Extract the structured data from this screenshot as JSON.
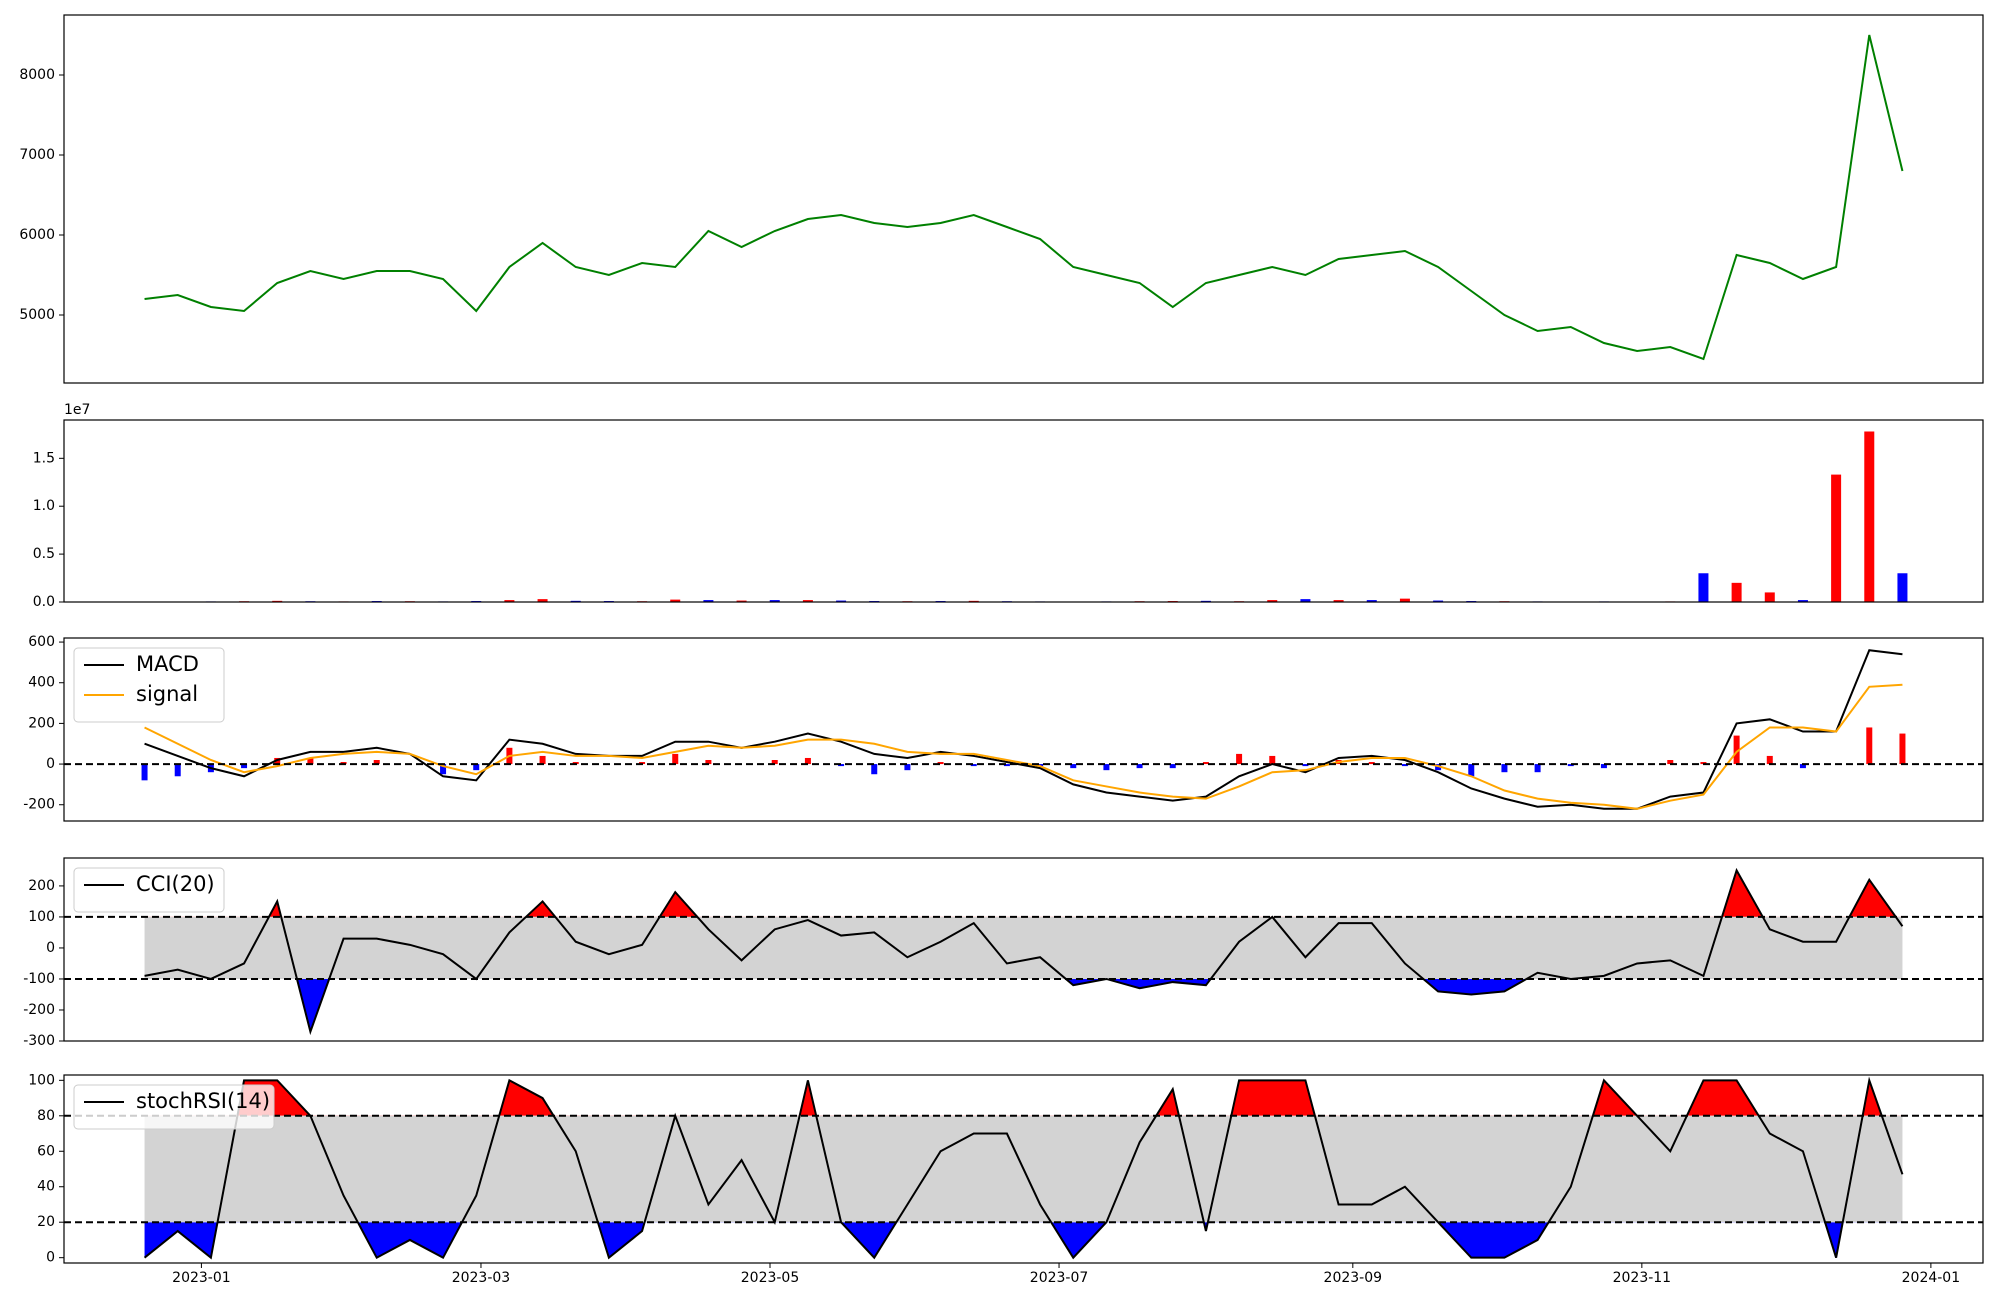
{
  "chart_data": [
    {
      "type": "line",
      "xlim": [
        "2022-12-03",
        "2024-01-12"
      ],
      "ylim": [
        4150,
        8750
      ],
      "yticks": [
        5000,
        6000,
        7000,
        8000
      ],
      "x": [
        "2022-12-20",
        "2022-12-27",
        "2023-01-03",
        "2023-01-10",
        "2023-01-17",
        "2023-01-24",
        "2023-01-31",
        "2023-02-07",
        "2023-02-14",
        "2023-02-21",
        "2023-02-28",
        "2023-03-07",
        "2023-03-14",
        "2023-03-21",
        "2023-03-28",
        "2023-04-04",
        "2023-04-11",
        "2023-04-18",
        "2023-04-25",
        "2023-05-02",
        "2023-05-09",
        "2023-05-16",
        "2023-05-23",
        "2023-05-30",
        "2023-06-06",
        "2023-06-13",
        "2023-06-20",
        "2023-06-27",
        "2023-07-04",
        "2023-07-11",
        "2023-07-18",
        "2023-07-25",
        "2023-08-01",
        "2023-08-08",
        "2023-08-15",
        "2023-08-22",
        "2023-08-29",
        "2023-09-05",
        "2023-09-12",
        "2023-09-19",
        "2023-09-26",
        "2023-10-03",
        "2023-10-10",
        "2023-10-17",
        "2023-10-24",
        "2023-10-31",
        "2023-11-07",
        "2023-11-14",
        "2023-11-21",
        "2023-11-28",
        "2023-12-05",
        "2023-12-12",
        "2023-12-19",
        "2023-12-26"
      ],
      "series": [
        {
          "color": "#008000",
          "values": [
            5200,
            5250,
            5100,
            5050,
            5400,
            5550,
            5450,
            5550,
            5550,
            5450,
            5050,
            5600,
            5900,
            5600,
            5500,
            5650,
            5600,
            6050,
            5850,
            6050,
            6200,
            6250,
            6150,
            6100,
            6150,
            6250,
            6100,
            5950,
            5600,
            5500,
            5400,
            5100,
            5400,
            5500,
            5600,
            5500,
            5700,
            5750,
            5800,
            5600,
            5300,
            5000,
            4800,
            4850,
            4650,
            4550,
            4600,
            4450,
            5750,
            5650,
            5450,
            5600,
            8500,
            6800
          ]
        }
      ]
    },
    {
      "type": "bar",
      "xlim": [
        "2022-12-03",
        "2024-01-12"
      ],
      "ylim": [
        0,
        1.9
      ],
      "offset_label": "1e7",
      "yticks": [
        {
          "value": 0,
          "label": "0.0"
        },
        0.5,
        {
          "value": 1,
          "label": "1.0"
        },
        1.5
      ],
      "x": [
        "2022-12-20",
        "2022-12-27",
        "2023-01-03",
        "2023-01-10",
        "2023-01-17",
        "2023-01-24",
        "2023-01-31",
        "2023-02-07",
        "2023-02-14",
        "2023-02-21",
        "2023-02-28",
        "2023-03-07",
        "2023-03-14",
        "2023-03-21",
        "2023-03-28",
        "2023-04-04",
        "2023-04-11",
        "2023-04-18",
        "2023-04-25",
        "2023-05-02",
        "2023-05-09",
        "2023-05-16",
        "2023-05-23",
        "2023-05-30",
        "2023-06-06",
        "2023-06-13",
        "2023-06-20",
        "2023-06-27",
        "2023-07-04",
        "2023-07-11",
        "2023-07-18",
        "2023-07-25",
        "2023-08-01",
        "2023-08-08",
        "2023-08-15",
        "2023-08-22",
        "2023-08-29",
        "2023-09-05",
        "2023-09-12",
        "2023-09-19",
        "2023-09-26",
        "2023-10-03",
        "2023-10-10",
        "2023-10-17",
        "2023-10-24",
        "2023-10-31",
        "2023-11-07",
        "2023-11-14",
        "2023-11-21",
        "2023-11-28",
        "2023-12-05",
        "2023-12-12",
        "2023-12-19",
        "2023-12-26"
      ],
      "values": [
        0.005,
        0.004,
        0.006,
        0.008,
        0.012,
        0.008,
        0.006,
        0.01,
        0.008,
        0.006,
        0.01,
        0.02,
        0.03,
        0.012,
        0.01,
        0.008,
        0.025,
        0.02,
        0.015,
        0.02,
        0.02,
        0.015,
        0.01,
        0.008,
        0.01,
        0.012,
        0.008,
        0.006,
        0.005,
        0.006,
        0.008,
        0.01,
        0.012,
        0.008,
        0.02,
        0.03,
        0.02,
        0.02,
        0.035,
        0.015,
        0.01,
        0.008,
        0.006,
        0.005,
        0.006,
        0.005,
        0.006,
        0.3,
        0.2,
        0.1,
        0.02,
        1.33,
        1.78,
        0.3
      ],
      "colors": [
        "blue",
        "red",
        "blue",
        "red",
        "red",
        "blue",
        "red",
        "blue",
        "red",
        "blue",
        "blue",
        "red",
        "red",
        "blue",
        "blue",
        "red",
        "red",
        "blue",
        "red",
        "blue",
        "red",
        "blue",
        "blue",
        "red",
        "blue",
        "red",
        "blue",
        "blue",
        "red",
        "blue",
        "red",
        "red",
        "blue",
        "red",
        "red",
        "blue",
        "red",
        "blue",
        "red",
        "blue",
        "blue",
        "red",
        "blue",
        "red",
        "blue",
        "blue",
        "red",
        "blue",
        "red",
        "red",
        "blue",
        "red",
        "red",
        "blue"
      ]
    },
    {
      "type": "macd",
      "xlim": [
        "2022-12-03",
        "2024-01-12"
      ],
      "ylim": [
        -280,
        620
      ],
      "yticks": [
        -200,
        0,
        200,
        400,
        600
      ],
      "hlines": [
        0
      ],
      "legend": "upper left",
      "bar_colors": {
        "positive": "red",
        "negative": "blue"
      },
      "x": [
        "2022-12-20",
        "2022-12-27",
        "2023-01-03",
        "2023-01-10",
        "2023-01-17",
        "2023-01-24",
        "2023-01-31",
        "2023-02-07",
        "2023-02-14",
        "2023-02-21",
        "2023-02-28",
        "2023-03-07",
        "2023-03-14",
        "2023-03-21",
        "2023-03-28",
        "2023-04-04",
        "2023-04-11",
        "2023-04-18",
        "2023-04-25",
        "2023-05-02",
        "2023-05-09",
        "2023-05-16",
        "2023-05-23",
        "2023-05-30",
        "2023-06-06",
        "2023-06-13",
        "2023-06-20",
        "2023-06-27",
        "2023-07-04",
        "2023-07-11",
        "2023-07-18",
        "2023-07-25",
        "2023-08-01",
        "2023-08-08",
        "2023-08-15",
        "2023-08-22",
        "2023-08-29",
        "2023-09-05",
        "2023-09-12",
        "2023-09-19",
        "2023-09-26",
        "2023-10-03",
        "2023-10-10",
        "2023-10-17",
        "2023-10-24",
        "2023-10-31",
        "2023-11-07",
        "2023-11-14",
        "2023-11-21",
        "2023-11-28",
        "2023-12-05",
        "2023-12-12",
        "2023-12-19",
        "2023-12-26"
      ],
      "series": [
        {
          "name": "MACD",
          "color": "#000000",
          "values": [
            100,
            40,
            -20,
            -60,
            20,
            60,
            60,
            80,
            50,
            -60,
            -80,
            120,
            100,
            50,
            40,
            40,
            110,
            110,
            80,
            110,
            150,
            110,
            50,
            30,
            60,
            40,
            10,
            -20,
            -100,
            -140,
            -160,
            -180,
            -160,
            -60,
            0,
            -40,
            30,
            40,
            20,
            -40,
            -120,
            -170,
            -210,
            -200,
            -220,
            -220,
            -160,
            -140,
            200,
            220,
            160,
            160,
            560,
            540
          ]
        },
        {
          "name": "signal",
          "color": "#ffa500",
          "values": [
            180,
            100,
            20,
            -40,
            -10,
            30,
            50,
            60,
            50,
            -10,
            -50,
            40,
            60,
            40,
            40,
            30,
            60,
            90,
            80,
            90,
            120,
            120,
            100,
            60,
            50,
            50,
            20,
            -10,
            -80,
            -110,
            -140,
            -160,
            -170,
            -110,
            -40,
            -30,
            10,
            30,
            30,
            -10,
            -60,
            -130,
            -170,
            -190,
            -200,
            -220,
            -180,
            -150,
            60,
            180,
            180,
            160,
            380,
            390
          ]
        },
        {
          "style": "bar",
          "values": [
            -80,
            -60,
            -40,
            -20,
            30,
            30,
            10,
            20,
            0,
            -50,
            -30,
            80,
            40,
            10,
            0,
            10,
            50,
            20,
            0,
            20,
            30,
            -10,
            -50,
            -30,
            10,
            -10,
            -10,
            -10,
            -20,
            -30,
            -20,
            -20,
            10,
            50,
            40,
            -10,
            20,
            10,
            -10,
            -30,
            -60,
            -40,
            -40,
            -10,
            -20,
            0,
            20,
            10,
            140,
            40,
            -20,
            0,
            180,
            150
          ]
        }
      ]
    },
    {
      "type": "oscillator",
      "xlim": [
        "2022-12-03",
        "2024-01-12"
      ],
      "ylim": [
        -300,
        290
      ],
      "yticks": [
        -300,
        -200,
        -100,
        0,
        100,
        200
      ],
      "bounds": [
        -100,
        100
      ],
      "legend": "upper left",
      "fills": {
        "band": "#d3d3d3",
        "above": "red",
        "below": "blue"
      },
      "x": [
        "2022-12-20",
        "2022-12-27",
        "2023-01-03",
        "2023-01-10",
        "2023-01-17",
        "2023-01-24",
        "2023-01-31",
        "2023-02-07",
        "2023-02-14",
        "2023-02-21",
        "2023-02-28",
        "2023-03-07",
        "2023-03-14",
        "2023-03-21",
        "2023-03-28",
        "2023-04-04",
        "2023-04-11",
        "2023-04-18",
        "2023-04-25",
        "2023-05-02",
        "2023-05-09",
        "2023-05-16",
        "2023-05-23",
        "2023-05-30",
        "2023-06-06",
        "2023-06-13",
        "2023-06-20",
        "2023-06-27",
        "2023-07-04",
        "2023-07-11",
        "2023-07-18",
        "2023-07-25",
        "2023-08-01",
        "2023-08-08",
        "2023-08-15",
        "2023-08-22",
        "2023-08-29",
        "2023-09-05",
        "2023-09-12",
        "2023-09-19",
        "2023-09-26",
        "2023-10-03",
        "2023-10-10",
        "2023-10-17",
        "2023-10-24",
        "2023-10-31",
        "2023-11-07",
        "2023-11-14",
        "2023-11-21",
        "2023-11-28",
        "2023-12-05",
        "2023-12-12",
        "2023-12-19",
        "2023-12-26"
      ],
      "series": [
        {
          "name": "CCI(20)",
          "color": "#000000",
          "values": [
            -90,
            -70,
            -100,
            -50,
            150,
            -270,
            30,
            30,
            10,
            -20,
            -100,
            50,
            150,
            20,
            -20,
            10,
            180,
            60,
            -40,
            60,
            90,
            40,
            50,
            -30,
            20,
            80,
            -50,
            -30,
            -120,
            -100,
            -130,
            -110,
            -120,
            20,
            100,
            -30,
            80,
            80,
            -50,
            -140,
            -150,
            -140,
            -80,
            -100,
            -90,
            -50,
            -40,
            -90,
            250,
            60,
            20,
            20,
            220,
            70
          ]
        }
      ]
    },
    {
      "type": "oscillator",
      "xlim": [
        "2022-12-03",
        "2024-01-12"
      ],
      "ylim": [
        -3,
        103
      ],
      "yticks": [
        0,
        20,
        40,
        60,
        80,
        100
      ],
      "bounds": [
        20,
        80
      ],
      "legend": "upper left",
      "fills": {
        "band": "#d3d3d3",
        "above": "red",
        "below": "blue"
      },
      "xticks": [
        {
          "value": "2023-01-01",
          "label": "2023-01"
        },
        {
          "value": "2023-03-01",
          "label": "2023-03"
        },
        {
          "value": "2023-05-01",
          "label": "2023-05"
        },
        {
          "value": "2023-07-01",
          "label": "2023-07"
        },
        {
          "value": "2023-09-01",
          "label": "2023-09"
        },
        {
          "value": "2023-11-01",
          "label": "2023-11"
        },
        {
          "value": "2024-01-01",
          "label": "2024-01"
        }
      ],
      "x": [
        "2022-12-20",
        "2022-12-27",
        "2023-01-03",
        "2023-01-10",
        "2023-01-17",
        "2023-01-24",
        "2023-01-31",
        "2023-02-07",
        "2023-02-14",
        "2023-02-21",
        "2023-02-28",
        "2023-03-07",
        "2023-03-14",
        "2023-03-21",
        "2023-03-28",
        "2023-04-04",
        "2023-04-11",
        "2023-04-18",
        "2023-04-25",
        "2023-05-02",
        "2023-05-09",
        "2023-05-16",
        "2023-05-23",
        "2023-05-30",
        "2023-06-06",
        "2023-06-13",
        "2023-06-20",
        "2023-06-27",
        "2023-07-04",
        "2023-07-11",
        "2023-07-18",
        "2023-07-25",
        "2023-08-01",
        "2023-08-08",
        "2023-08-15",
        "2023-08-22",
        "2023-08-29",
        "2023-09-05",
        "2023-09-12",
        "2023-09-19",
        "2023-09-26",
        "2023-10-03",
        "2023-10-10",
        "2023-10-17",
        "2023-10-24",
        "2023-10-31",
        "2023-11-07",
        "2023-11-14",
        "2023-11-21",
        "2023-11-28",
        "2023-12-05",
        "2023-12-12",
        "2023-12-19",
        "2023-12-26"
      ],
      "series": [
        {
          "name": "stochRSI(14)",
          "color": "#000000",
          "values": [
            0,
            15,
            0,
            100,
            100,
            80,
            35,
            0,
            10,
            0,
            35,
            100,
            90,
            60,
            0,
            15,
            80,
            30,
            55,
            20,
            100,
            20,
            0,
            30,
            60,
            70,
            70,
            30,
            0,
            20,
            65,
            95,
            15,
            100,
            100,
            100,
            30,
            30,
            40,
            20,
            0,
            0,
            10,
            40,
            100,
            80,
            60,
            100,
            100,
            70,
            60,
            0,
            100,
            47
          ]
        }
      ]
    }
  ]
}
